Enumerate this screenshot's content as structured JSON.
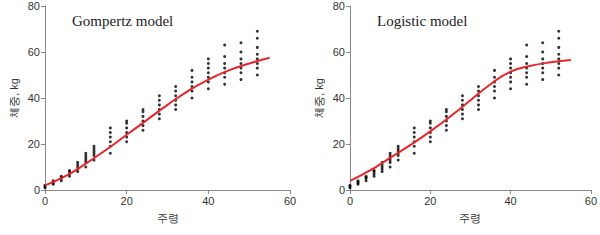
{
  "chart_data": [
    {
      "type": "scatter",
      "title": "Gompertz model",
      "x_label": "주령",
      "y_label": "체중, kg",
      "xlim": [
        0,
        60
      ],
      "xticks": [
        0,
        20,
        40,
        60
      ],
      "ylim": [
        0,
        80
      ],
      "yticks": [
        0,
        20,
        40,
        60,
        80
      ],
      "grid": false,
      "series": [
        {
          "type": "scatter",
          "color": "#000000",
          "marker": "circle",
          "x": [
            0,
            0,
            0,
            2,
            2,
            2,
            2,
            4,
            4,
            4,
            4,
            6,
            6,
            6,
            6,
            8,
            8,
            8,
            8,
            8,
            10,
            10,
            10,
            10,
            10,
            10,
            12,
            12,
            12,
            12,
            12,
            12,
            16,
            16,
            16,
            16,
            16,
            16,
            20,
            20,
            20,
            20,
            20,
            20,
            24,
            24,
            24,
            24,
            24,
            24,
            28,
            28,
            28,
            28,
            28,
            28,
            32,
            32,
            32,
            32,
            32,
            32,
            36,
            36,
            36,
            36,
            36,
            36,
            40,
            40,
            40,
            40,
            40,
            40,
            40,
            44,
            44,
            44,
            44,
            44,
            44,
            44,
            48,
            48,
            48,
            48,
            48,
            48,
            48,
            52,
            52,
            52,
            52,
            52,
            52,
            52,
            52
          ],
          "values": [
            1,
            1.5,
            2,
            2.5,
            3,
            3.5,
            4,
            4,
            5,
            5.5,
            6,
            6,
            7,
            8,
            8.5,
            8,
            9,
            10,
            11,
            12,
            10,
            12,
            13,
            14,
            15,
            16,
            13,
            15,
            16,
            17,
            18,
            19,
            16,
            19,
            21,
            23,
            25,
            27,
            21,
            23,
            25,
            27,
            29,
            30,
            26,
            28,
            30,
            32,
            34,
            35,
            31,
            33,
            35,
            37,
            39,
            41,
            35,
            37,
            39,
            41,
            43,
            45,
            40,
            43,
            45,
            47,
            49,
            52,
            44,
            47,
            49,
            51,
            53,
            55,
            57,
            46,
            49,
            51,
            53,
            55,
            58,
            63,
            48,
            51,
            53,
            55,
            57,
            60,
            64,
            50,
            53,
            55,
            57,
            59,
            62,
            66,
            69
          ]
        },
        {
          "type": "line",
          "color": "#e8262a",
          "line_style": "solid",
          "x": [
            0,
            5,
            10,
            15,
            20,
            25,
            30,
            35,
            40,
            45,
            50,
            55
          ],
          "values": [
            2,
            6,
            11.5,
            17.5,
            24,
            30.5,
            37,
            43,
            48,
            52,
            55,
            57.5
          ]
        }
      ]
    },
    {
      "type": "scatter",
      "title": "Logistic model",
      "x_label": "주령",
      "y_label": "체중, kg",
      "xlim": [
        0,
        60
      ],
      "xticks": [
        0,
        20,
        40,
        60
      ],
      "ylim": [
        0,
        80
      ],
      "yticks": [
        0,
        20,
        40,
        60,
        80
      ],
      "grid": false,
      "series": [
        {
          "type": "scatter",
          "color": "#000000",
          "marker": "circle",
          "x": [
            0,
            0,
            0,
            2,
            2,
            2,
            2,
            4,
            4,
            4,
            4,
            6,
            6,
            6,
            6,
            8,
            8,
            8,
            8,
            8,
            10,
            10,
            10,
            10,
            10,
            10,
            12,
            12,
            12,
            12,
            12,
            12,
            16,
            16,
            16,
            16,
            16,
            16,
            20,
            20,
            20,
            20,
            20,
            20,
            24,
            24,
            24,
            24,
            24,
            24,
            28,
            28,
            28,
            28,
            28,
            28,
            32,
            32,
            32,
            32,
            32,
            32,
            36,
            36,
            36,
            36,
            36,
            36,
            40,
            40,
            40,
            40,
            40,
            40,
            40,
            44,
            44,
            44,
            44,
            44,
            44,
            44,
            48,
            48,
            48,
            48,
            48,
            48,
            48,
            52,
            52,
            52,
            52,
            52,
            52,
            52,
            52
          ],
          "values": [
            1,
            1.5,
            2,
            2.5,
            3,
            3.5,
            4,
            4,
            5,
            5.5,
            6,
            6,
            7,
            8,
            8.5,
            8,
            9,
            10,
            11,
            12,
            10,
            12,
            13,
            14,
            15,
            16,
            13,
            15,
            16,
            17,
            18,
            19,
            16,
            19,
            21,
            23,
            25,
            27,
            21,
            23,
            25,
            27,
            29,
            30,
            26,
            28,
            30,
            32,
            34,
            35,
            31,
            33,
            35,
            37,
            39,
            41,
            35,
            37,
            39,
            41,
            43,
            45,
            40,
            43,
            45,
            47,
            49,
            52,
            44,
            47,
            49,
            51,
            53,
            55,
            57,
            46,
            49,
            51,
            53,
            55,
            58,
            63,
            48,
            51,
            53,
            55,
            57,
            60,
            64,
            50,
            53,
            55,
            57,
            59,
            62,
            66,
            69
          ]
        },
        {
          "type": "line",
          "color": "#e8262a",
          "line_style": "solid",
          "x": [
            0,
            5,
            10,
            15,
            20,
            25,
            30,
            35,
            40,
            45,
            50,
            55
          ],
          "values": [
            4,
            8.5,
            14,
            19.5,
            25.5,
            32,
            39,
            46,
            51.5,
            54,
            55.5,
            56.5
          ]
        }
      ]
    }
  ]
}
